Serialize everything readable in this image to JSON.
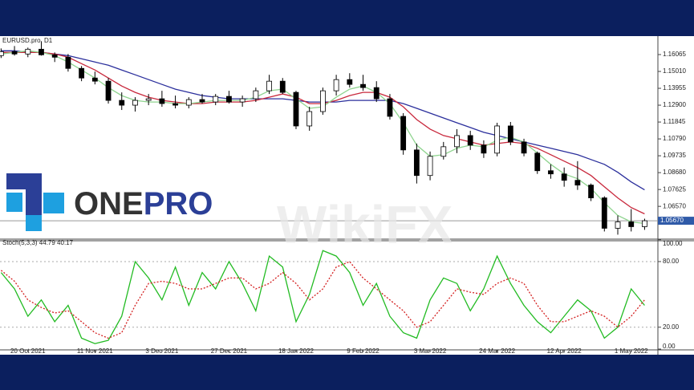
{
  "logo": {
    "part1": "ONE",
    "part2": "PRO"
  },
  "watermark": "WikiFX",
  "chart_data": [
    {
      "type": "candlestick",
      "label": "EURUSD.pro, D1",
      "ylim": [
        1.0452,
        1.1722
      ],
      "yticks": [
        1.16065,
        {
          "value": 1.1501,
          "label": "1.15010"
        },
        1.13955,
        {
          "value": 1.129,
          "label": "1.12900"
        },
        1.11845,
        {
          "value": 1.1079,
          "label": "1.10790"
        },
        1.09735,
        {
          "value": 1.0868,
          "label": "1.08680"
        },
        1.07625,
        {
          "value": 1.0657,
          "label": "1.06570"
        }
      ],
      "current_price": {
        "value": 1.0567,
        "label": "1.05670"
      },
      "open": [
        1.16,
        1.1625,
        1.161,
        1.164,
        1.1605,
        1.159,
        1.152,
        1.146,
        1.144,
        1.132,
        1.129,
        1.132,
        1.133,
        1.13,
        1.129,
        1.1325,
        1.131,
        1.1345,
        1.131,
        1.133,
        1.138,
        1.144,
        1.137,
        1.116,
        1.125,
        1.138,
        1.145,
        1.142,
        1.14,
        1.133,
        1.122,
        1.101,
        1.085,
        1.097,
        1.103,
        1.11,
        1.104,
        1.099,
        1.116,
        1.106,
        1.099,
        1.088,
        1.086,
        1.082,
        1.079,
        1.071,
        1.052,
        1.056,
        1.053
      ],
      "high": [
        1.1645,
        1.166,
        1.165,
        1.169,
        1.162,
        1.161,
        1.1535,
        1.15,
        1.146,
        1.137,
        1.134,
        1.136,
        1.138,
        1.135,
        1.134,
        1.136,
        1.136,
        1.138,
        1.135,
        1.14,
        1.148,
        1.146,
        1.138,
        1.128,
        1.14,
        1.148,
        1.149,
        1.148,
        1.144,
        1.136,
        1.124,
        1.105,
        1.1,
        1.106,
        1.114,
        1.113,
        1.107,
        1.118,
        1.1185,
        1.108,
        1.1,
        1.092,
        1.09,
        1.094,
        1.08,
        1.072,
        1.06,
        1.064,
        1.058
      ],
      "low": [
        1.1585,
        1.16,
        1.159,
        1.16,
        1.156,
        1.15,
        1.144,
        1.142,
        1.13,
        1.126,
        1.125,
        1.129,
        1.128,
        1.127,
        1.127,
        1.13,
        1.129,
        1.13,
        1.128,
        1.131,
        1.136,
        1.136,
        1.114,
        1.113,
        1.123,
        1.135,
        1.14,
        1.138,
        1.131,
        1.12,
        1.098,
        1.08,
        1.082,
        1.095,
        1.099,
        1.101,
        1.096,
        1.097,
        1.104,
        1.097,
        1.086,
        1.083,
        1.078,
        1.076,
        1.069,
        1.05,
        1.048,
        1.05,
        1.051
      ],
      "close": [
        1.1625,
        1.161,
        1.164,
        1.1605,
        1.159,
        1.152,
        1.146,
        1.144,
        1.132,
        1.129,
        1.132,
        1.133,
        1.13,
        1.129,
        1.1325,
        1.131,
        1.1345,
        1.131,
        1.133,
        1.138,
        1.144,
        1.137,
        1.116,
        1.125,
        1.138,
        1.145,
        1.142,
        1.14,
        1.133,
        1.122,
        1.101,
        1.085,
        1.097,
        1.103,
        1.11,
        1.104,
        1.099,
        1.116,
        1.106,
        1.099,
        1.088,
        1.086,
        1.082,
        1.079,
        1.071,
        1.052,
        1.056,
        1.053,
        1.0567
      ],
      "series": [
        {
          "color": "#2b2f9c",
          "values": [
            1.163,
            1.163,
            1.162,
            1.162,
            1.161,
            1.16,
            1.158,
            1.156,
            1.154,
            1.151,
            1.148,
            1.145,
            1.142,
            1.139,
            1.137,
            1.135,
            1.134,
            1.133,
            1.133,
            1.133,
            1.133,
            1.133,
            1.132,
            1.131,
            1.131,
            1.131,
            1.132,
            1.132,
            1.132,
            1.132,
            1.13,
            1.127,
            1.124,
            1.121,
            1.118,
            1.115,
            1.112,
            1.11,
            1.108,
            1.106,
            1.104,
            1.102,
            1.1,
            1.098,
            1.095,
            1.092,
            1.087,
            1.081,
            1.076
          ]
        },
        {
          "color": "#c8283c",
          "values": [
            1.162,
            1.162,
            1.162,
            1.162,
            1.161,
            1.159,
            1.155,
            1.151,
            1.146,
            1.141,
            1.137,
            1.134,
            1.132,
            1.131,
            1.13,
            1.13,
            1.131,
            1.131,
            1.131,
            1.132,
            1.134,
            1.136,
            1.134,
            1.13,
            1.13,
            1.132,
            1.135,
            1.137,
            1.137,
            1.134,
            1.128,
            1.12,
            1.114,
            1.11,
            1.108,
            1.106,
            1.104,
            1.105,
            1.106,
            1.105,
            1.102,
            1.098,
            1.094,
            1.09,
            1.085,
            1.078,
            1.071,
            1.065,
            1.061
          ]
        },
        {
          "color": "#8fd48f",
          "values": [
            1.161,
            1.162,
            1.163,
            1.162,
            1.16,
            1.156,
            1.151,
            1.146,
            1.14,
            1.135,
            1.132,
            1.131,
            1.131,
            1.13,
            1.13,
            1.131,
            1.132,
            1.132,
            1.132,
            1.134,
            1.138,
            1.139,
            1.133,
            1.127,
            1.128,
            1.134,
            1.139,
            1.141,
            1.137,
            1.13,
            1.118,
            1.104,
            1.097,
            1.098,
            1.102,
            1.104,
            1.103,
            1.107,
            1.109,
            1.106,
            1.099,
            1.092,
            1.086,
            1.083,
            1.077,
            1.068,
            1.06,
            1.056,
            1.055
          ]
        }
      ]
    },
    {
      "type": "line",
      "label": "Stoch(5,3,3) 44.79 40.17",
      "ylim": [
        0,
        100
      ],
      "yticks": [
        {
          "value": 0,
          "label": "0.00"
        },
        {
          "value": 20,
          "label": "20.00"
        },
        {
          "value": 80,
          "label": "80.00"
        },
        {
          "value": 100,
          "label": "100.00"
        }
      ],
      "levels": [
        20,
        80
      ],
      "categories": [
        null,
        null,
        "20 Oct 2021",
        null,
        null,
        null,
        null,
        "11 Nov 2021",
        null,
        null,
        null,
        null,
        "3 Dec 2021",
        null,
        null,
        null,
        null,
        "27 Dec 2021",
        null,
        null,
        null,
        null,
        "18 Jan 2022",
        null,
        null,
        null,
        null,
        "9 Feb 2022",
        null,
        null,
        null,
        null,
        "3 Mar 2022",
        null,
        null,
        null,
        null,
        "24 Mar 2022",
        null,
        null,
        null,
        null,
        "12 Apr 2022",
        null,
        null,
        null,
        null,
        "1 May 2022",
        null
      ],
      "series": [
        {
          "color": "#22bb22",
          "dash": false,
          "values": [
            70,
            55,
            30,
            45,
            25,
            40,
            10,
            5,
            8,
            30,
            80,
            65,
            45,
            75,
            40,
            70,
            55,
            80,
            60,
            35,
            85,
            75,
            25,
            50,
            90,
            85,
            70,
            40,
            60,
            30,
            15,
            10,
            45,
            65,
            60,
            35,
            55,
            85,
            60,
            40,
            25,
            15,
            30,
            45,
            35,
            10,
            20,
            55,
            40
          ]
        },
        {
          "color": "#d42020",
          "dash": true,
          "values": [
            72,
            62,
            45,
            38,
            33,
            35,
            25,
            15,
            10,
            15,
            40,
            60,
            62,
            60,
            55,
            55,
            60,
            65,
            65,
            55,
            60,
            70,
            60,
            45,
            55,
            75,
            80,
            65,
            55,
            45,
            35,
            20,
            25,
            40,
            55,
            52,
            50,
            60,
            65,
            60,
            40,
            25,
            25,
            30,
            35,
            30,
            20,
            30,
            45
          ]
        }
      ]
    }
  ]
}
